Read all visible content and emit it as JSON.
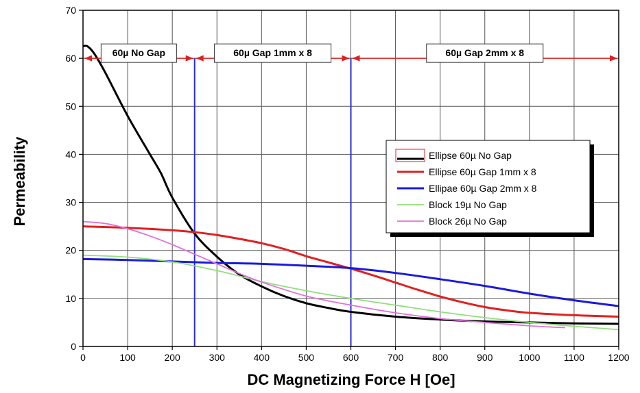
{
  "chart_data": {
    "type": "line",
    "xlabel": "DC Magnetizing Force H [Oe]",
    "ylabel": "Permeability",
    "xlim": [
      0,
      1200
    ],
    "ylim": [
      0,
      70
    ],
    "xticks": [
      0,
      100,
      200,
      300,
      400,
      500,
      600,
      700,
      800,
      900,
      1000,
      1100,
      1200
    ],
    "yticks": [
      0,
      10,
      20,
      30,
      40,
      50,
      60,
      70
    ],
    "grid": true,
    "legend_position": "right",
    "series": [
      {
        "name": "Ellipse 60µ  No Gap",
        "color": "#000000",
        "points": [
          [
            0,
            62.5
          ],
          [
            10,
            62.5
          ],
          [
            25,
            61
          ],
          [
            50,
            57
          ],
          [
            100,
            48
          ],
          [
            150,
            40
          ],
          [
            175,
            36
          ],
          [
            200,
            31
          ],
          [
            250,
            23.5
          ],
          [
            300,
            18.7
          ],
          [
            350,
            15
          ],
          [
            400,
            12.5
          ],
          [
            450,
            10.5
          ],
          [
            500,
            9
          ],
          [
            550,
            8
          ],
          [
            600,
            7.2
          ],
          [
            700,
            6.2
          ],
          [
            800,
            5.6
          ],
          [
            900,
            5.2
          ],
          [
            1000,
            5
          ],
          [
            1100,
            4.8
          ],
          [
            1200,
            4.7
          ]
        ]
      },
      {
        "name": "Ellipse 60µ  Gap 1mm x 8",
        "color": "#e02020",
        "points": [
          [
            0,
            25
          ],
          [
            100,
            24.7
          ],
          [
            200,
            24.2
          ],
          [
            250,
            23.8
          ],
          [
            300,
            23.2
          ],
          [
            350,
            22.4
          ],
          [
            400,
            21.5
          ],
          [
            450,
            20.3
          ],
          [
            500,
            18.8
          ],
          [
            550,
            17.5
          ],
          [
            600,
            16.2
          ],
          [
            650,
            14.8
          ],
          [
            700,
            13.3
          ],
          [
            750,
            11.8
          ],
          [
            800,
            10.4
          ],
          [
            850,
            9.2
          ],
          [
            900,
            8.2
          ],
          [
            950,
            7.5
          ],
          [
            1000,
            7
          ],
          [
            1100,
            6.5
          ],
          [
            1200,
            6.2
          ]
        ]
      },
      {
        "name": "Ellipae 60µ  Gap 2mm x 8",
        "color": "#1a1adc",
        "points": [
          [
            0,
            18.2
          ],
          [
            100,
            18
          ],
          [
            200,
            17.7
          ],
          [
            300,
            17.4
          ],
          [
            400,
            17.2
          ],
          [
            500,
            16.8
          ],
          [
            600,
            16.3
          ],
          [
            700,
            15.3
          ],
          [
            800,
            14
          ],
          [
            900,
            12.6
          ],
          [
            1000,
            11
          ],
          [
            1100,
            9.6
          ],
          [
            1200,
            8.4
          ]
        ]
      },
      {
        "name": "Block 19µ  No Gap",
        "color": "#8fe07a",
        "points": [
          [
            0,
            19
          ],
          [
            100,
            18.6
          ],
          [
            200,
            17.6
          ],
          [
            300,
            15.8
          ],
          [
            400,
            13.5
          ],
          [
            500,
            11.6
          ],
          [
            600,
            10
          ],
          [
            700,
            8.6
          ],
          [
            800,
            7.2
          ],
          [
            900,
            6
          ],
          [
            1000,
            5
          ],
          [
            1100,
            4.2
          ],
          [
            1200,
            3.5
          ]
        ]
      },
      {
        "name": "Block 26µ  No Gap",
        "color": "#e070d8",
        "points": [
          [
            0,
            26
          ],
          [
            50,
            25.6
          ],
          [
            100,
            24.5
          ],
          [
            150,
            23
          ],
          [
            200,
            21.2
          ],
          [
            250,
            19.2
          ],
          [
            300,
            17.2
          ],
          [
            350,
            15.2
          ],
          [
            400,
            13.4
          ],
          [
            500,
            10.5
          ],
          [
            600,
            8.6
          ],
          [
            700,
            7
          ],
          [
            800,
            5.8
          ],
          [
            900,
            5
          ],
          [
            1000,
            4.3
          ],
          [
            1080,
            3.9
          ]
        ]
      }
    ],
    "vlines": [
      {
        "x": 250,
        "color": "#2a2ad8"
      },
      {
        "x": 600,
        "color": "#2a2ad8"
      }
    ],
    "region_annotations": [
      {
        "label": "60µ No Gap",
        "x_start": 0,
        "x_end": 250,
        "y": 60,
        "color": "#e02020"
      },
      {
        "label": "60µ  Gap 1mm x 8",
        "x_start": 250,
        "x_end": 600,
        "y": 60,
        "color": "#e02020"
      },
      {
        "label": "60µ  Gap 2mm x 8",
        "x_start": 600,
        "x_end": 1200,
        "y": 60,
        "color": "#e02020"
      }
    ]
  }
}
